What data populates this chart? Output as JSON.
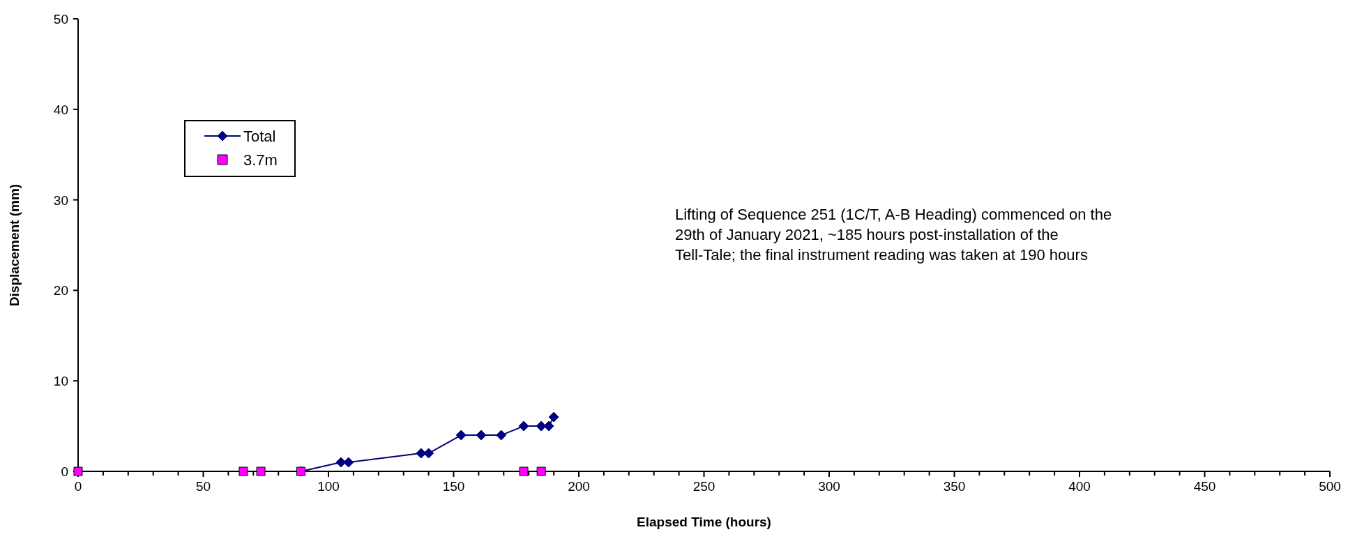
{
  "chart_data": {
    "type": "line",
    "xlabel": "Elapsed Time (hours)",
    "ylabel": "Displacement (mm)",
    "xlim": [
      0,
      500
    ],
    "ylim": [
      0,
      50
    ],
    "xticks": [
      0,
      {
        "value": 10,
        "label": null
      },
      {
        "value": 20,
        "label": null
      },
      {
        "value": 30,
        "label": null
      },
      {
        "value": 40,
        "label": null
      },
      50,
      {
        "value": 60,
        "label": null
      },
      {
        "value": 70,
        "label": null
      },
      {
        "value": 80,
        "label": null
      },
      {
        "value": 90,
        "label": null
      },
      100,
      {
        "value": 110,
        "label": null
      },
      {
        "value": 120,
        "label": null
      },
      {
        "value": 130,
        "label": null
      },
      {
        "value": 140,
        "label": null
      },
      150,
      {
        "value": 160,
        "label": null
      },
      {
        "value": 170,
        "label": null
      },
      {
        "value": 180,
        "label": null
      },
      {
        "value": 190,
        "label": null
      },
      200,
      {
        "value": 210,
        "label": null
      },
      {
        "value": 220,
        "label": null
      },
      {
        "value": 230,
        "label": null
      },
      {
        "value": 240,
        "label": null
      },
      250,
      {
        "value": 260,
        "label": null
      },
      {
        "value": 270,
        "label": null
      },
      {
        "value": 280,
        "label": null
      },
      {
        "value": 290,
        "label": null
      },
      300,
      {
        "value": 310,
        "label": null
      },
      {
        "value": 320,
        "label": null
      },
      {
        "value": 330,
        "label": null
      },
      {
        "value": 340,
        "label": null
      },
      350,
      {
        "value": 360,
        "label": null
      },
      {
        "value": 370,
        "label": null
      },
      {
        "value": 380,
        "label": null
      },
      {
        "value": 390,
        "label": null
      },
      400,
      {
        "value": 410,
        "label": null
      },
      {
        "value": 420,
        "label": null
      },
      {
        "value": 430,
        "label": null
      },
      {
        "value": 440,
        "label": null
      },
      450,
      {
        "value": 460,
        "label": null
      },
      {
        "value": 470,
        "label": null
      },
      {
        "value": 480,
        "label": null
      },
      {
        "value": 490,
        "label": null
      },
      500
    ],
    "yticks": [
      0,
      10,
      20,
      30,
      40,
      50
    ],
    "grid": false,
    "legend": "top left",
    "series": [
      {
        "name": "Total",
        "color": "#000080",
        "marker": "diamond",
        "x": [
          89,
          105,
          108,
          137,
          140,
          153,
          161,
          169,
          178,
          185,
          188,
          190
        ],
        "values": [
          0,
          1,
          1,
          2,
          2,
          4,
          4,
          4,
          5,
          5,
          5,
          6
        ]
      },
      {
        "name": "3.7m",
        "type": "scatter",
        "color": "#ff00ff",
        "marker": "square",
        "x": [
          0,
          66,
          73,
          89,
          178,
          185
        ],
        "values": [
          0,
          0,
          0,
          0,
          0,
          0
        ]
      }
    ],
    "annotations": [
      "Lifting of Sequence 251 (1C/T, A-B Heading) commenced on the 29th of January 2021, ~185 hours post-installation of the Tell-Tale; the final instrument reading was taken at 190 hours"
    ]
  }
}
